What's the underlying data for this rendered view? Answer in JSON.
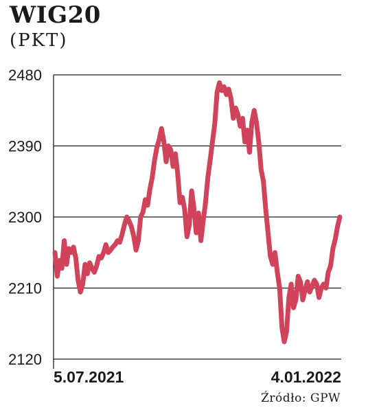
{
  "title": "WIG20",
  "unit": "(PKT)",
  "source": "Źródło: GPW",
  "colors": {
    "line": "#d1435b",
    "grid": "#1a1a1a",
    "text": "#1a1a1a"
  },
  "chart_data": {
    "type": "line",
    "title": "WIG20",
    "ylabel": "(PKT)",
    "xlabel": "",
    "ylim": [
      2120,
      2480
    ],
    "yticks": [
      2120,
      2210,
      2300,
      2390,
      2480
    ],
    "x_tick_labels": [
      "5.07.2021",
      "4.01.2022"
    ],
    "x_range": [
      "2021-07-05",
      "2022-01-04"
    ],
    "grid": "horizontal",
    "legend": "none",
    "series": [
      {
        "values": [
          2255,
          2225,
          2245,
          2235,
          2270,
          2240,
          2260,
          2255,
          2262,
          2248,
          2220,
          2205,
          2215,
          2240,
          2228,
          2242,
          2235,
          2230,
          2238,
          2250,
          2248,
          2255,
          2265,
          2255,
          2258,
          2262,
          2265,
          2270,
          2268,
          2278,
          2290,
          2300,
          2295,
          2288,
          2276,
          2258,
          2270,
          2300,
          2306,
          2322,
          2315,
          2335,
          2350,
          2372,
          2388,
          2398,
          2412,
          2396,
          2370,
          2390,
          2385,
          2364,
          2380,
          2355,
          2318,
          2325,
          2310,
          2275,
          2290,
          2333,
          2312,
          2280,
          2305,
          2270,
          2295,
          2318,
          2350,
          2372,
          2395,
          2418,
          2458,
          2470,
          2460,
          2465,
          2455,
          2462,
          2450,
          2425,
          2438,
          2430,
          2415,
          2425,
          2395,
          2410,
          2382,
          2420,
          2435,
          2420,
          2395,
          2360,
          2345,
          2310,
          2280,
          2250,
          2240,
          2255,
          2230,
          2210,
          2160,
          2142,
          2155,
          2198,
          2215,
          2185,
          2195,
          2225,
          2218,
          2195,
          2208,
          2218,
          2205,
          2212,
          2220,
          2215,
          2198,
          2210,
          2215,
          2210,
          2230,
          2238,
          2260,
          2272,
          2288,
          2300
        ]
      }
    ]
  }
}
